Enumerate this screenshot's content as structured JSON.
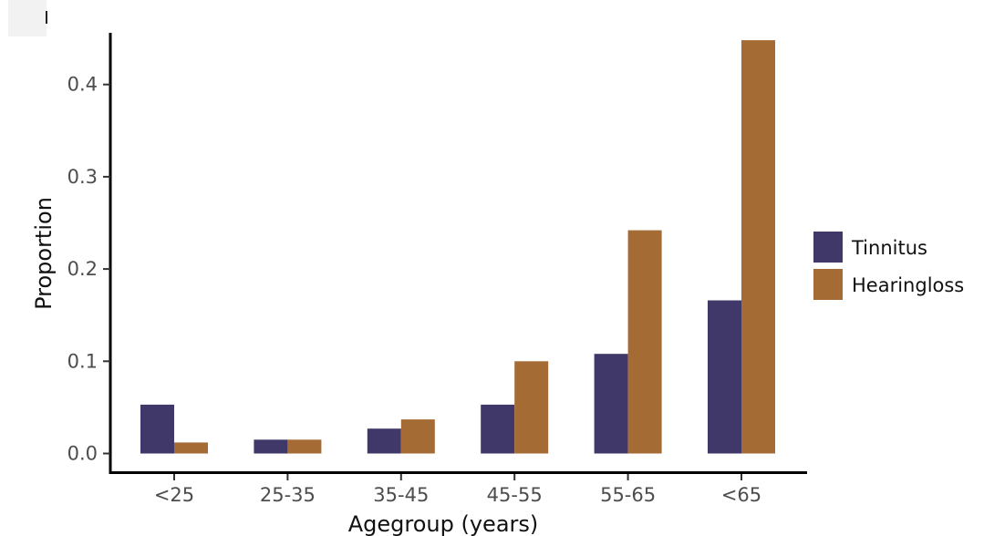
{
  "chart_data": {
    "type": "bar",
    "categories": [
      "<25",
      "25-35",
      "35-45",
      "45-55",
      "55-65",
      "<65"
    ],
    "series": [
      {
        "name": "Tinnitus",
        "color": "#3f3868",
        "values": [
          0.053,
          0.015,
          0.027,
          0.053,
          0.108,
          0.166
        ]
      },
      {
        "name": "Hearingloss",
        "color": "#a56b35",
        "values": [
          0.012,
          0.015,
          0.037,
          0.1,
          0.242,
          0.448
        ]
      }
    ],
    "xlabel": "Agegroup (years)",
    "ylabel": "Proportion",
    "yticks": [
      "0.0",
      "0.1",
      "0.2",
      "0.3",
      "0.4"
    ],
    "ylim": [
      -0.02,
      0.45
    ],
    "grid": false,
    "legend": "right"
  }
}
